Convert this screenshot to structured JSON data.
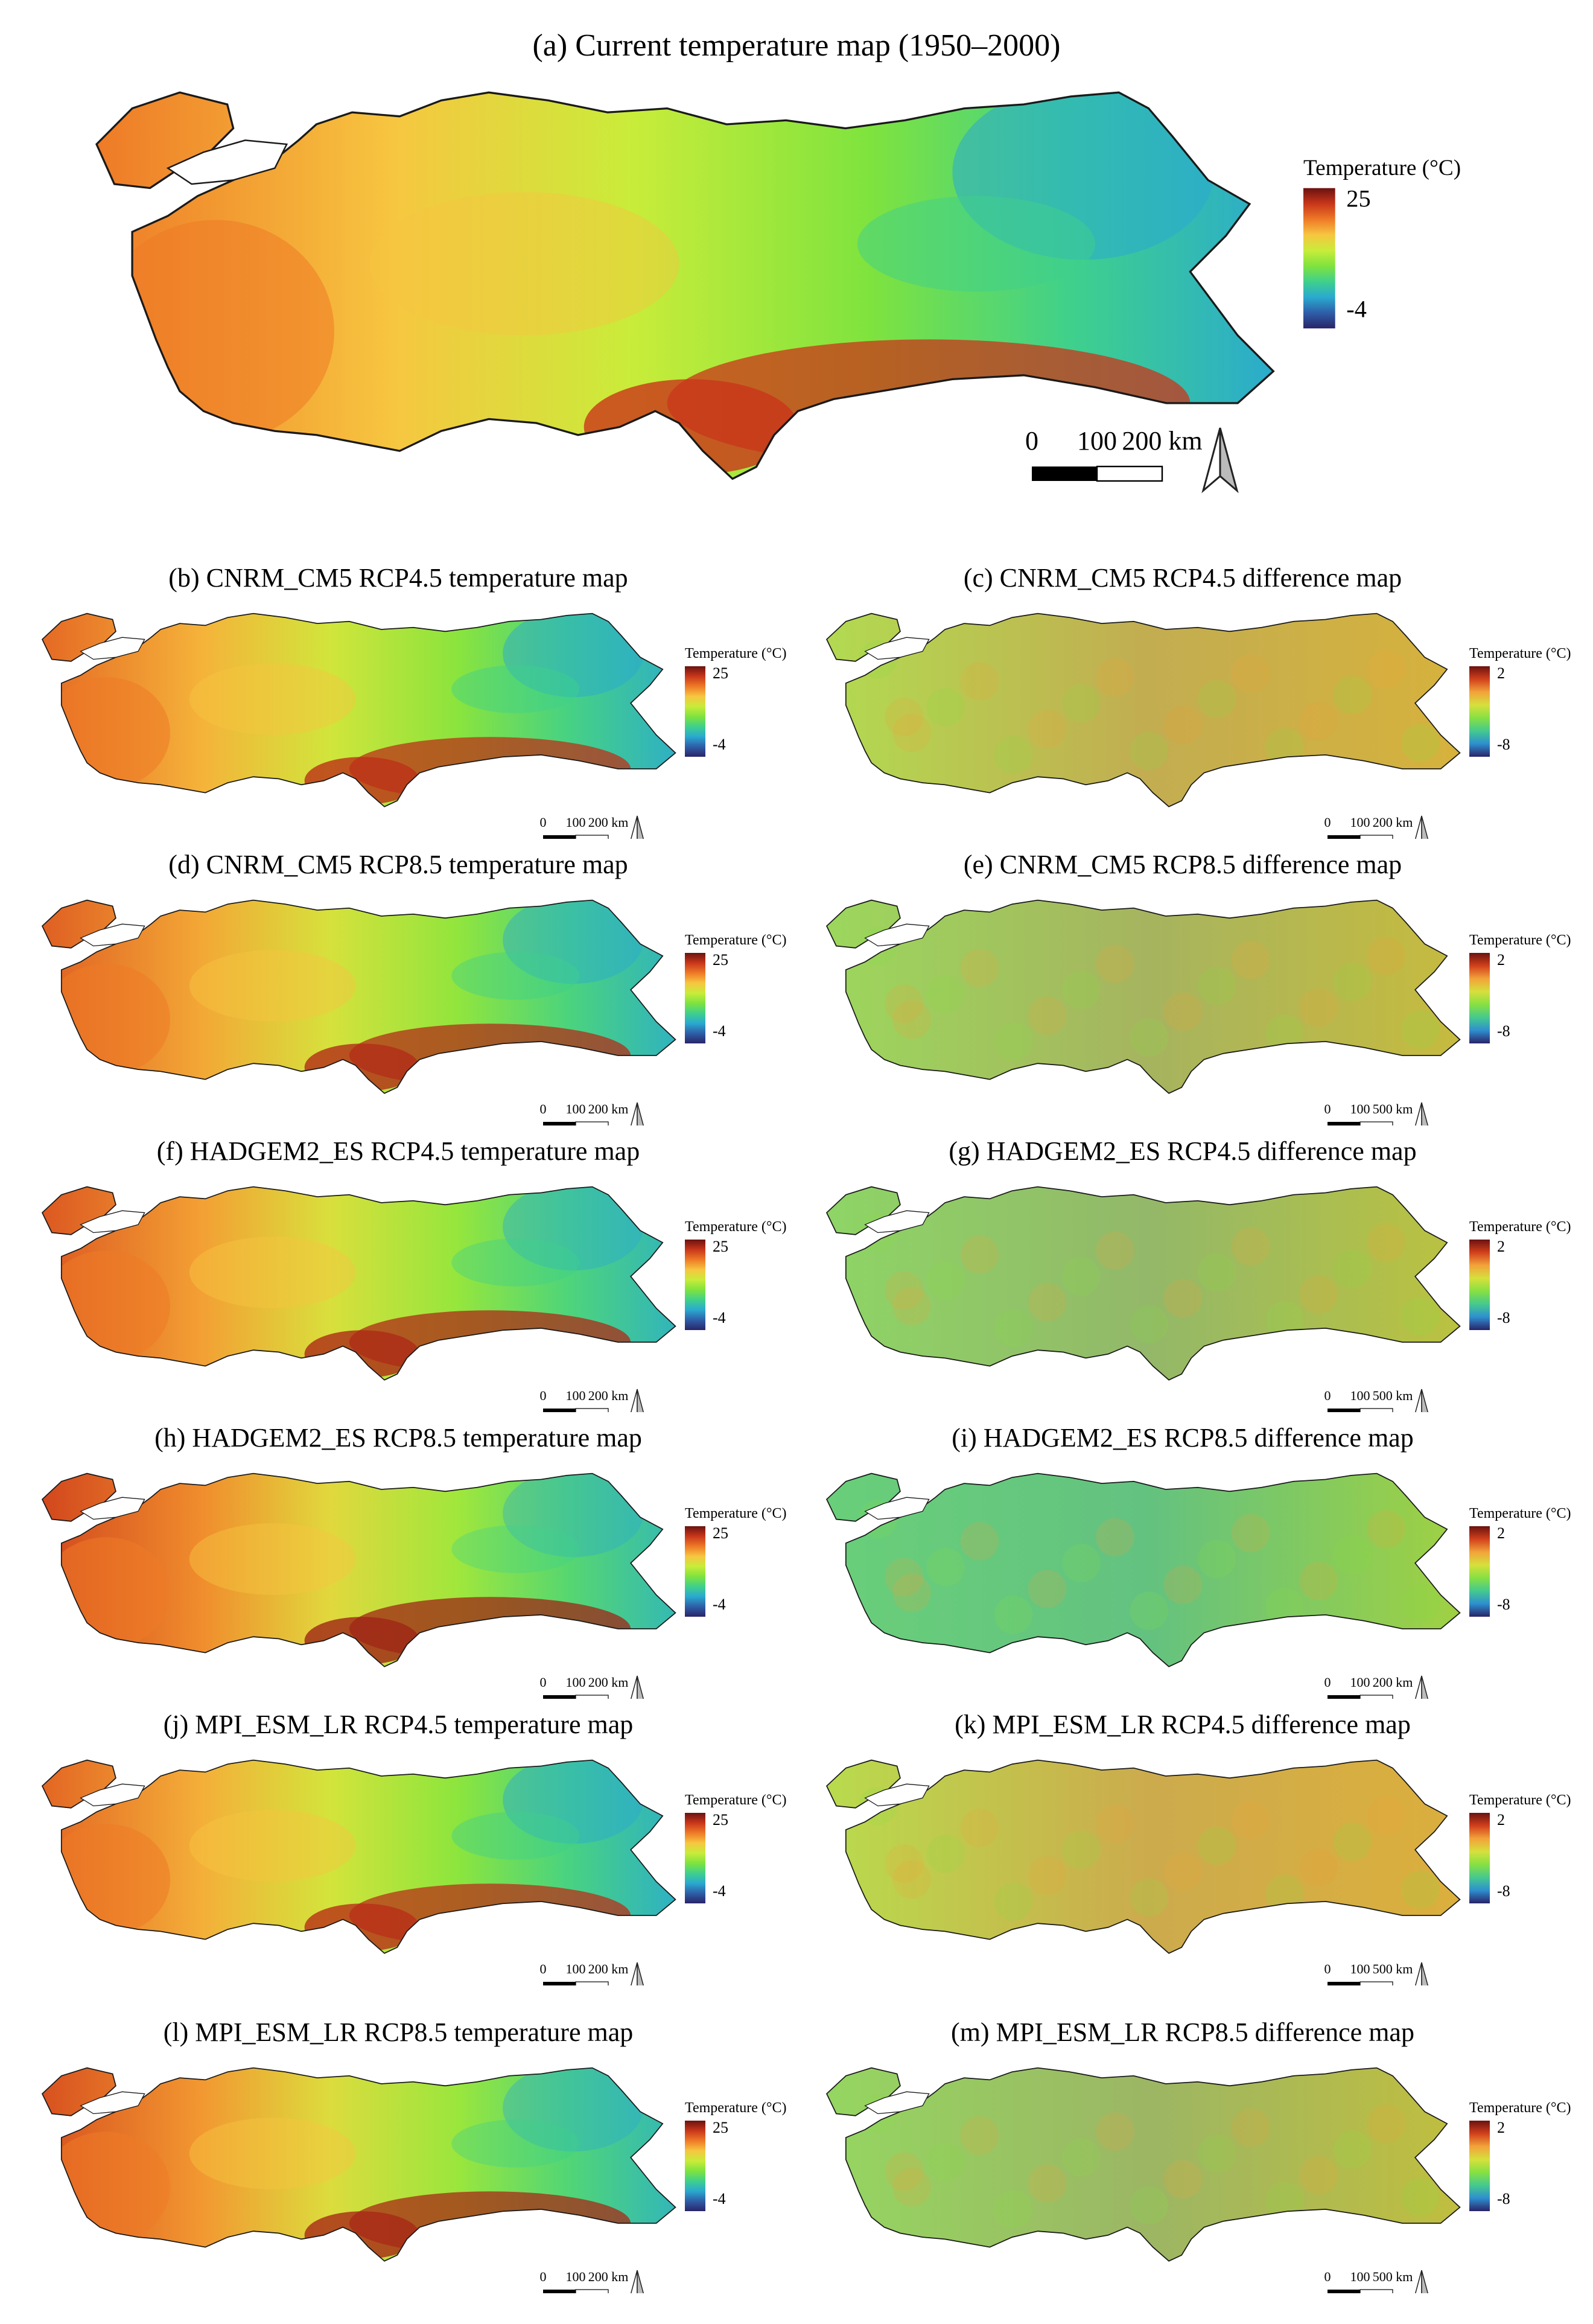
{
  "panel_a": {
    "title": "(a) Current temperature map (1950–2000)",
    "legend": {
      "title": "Temperature (°C)",
      "max": "25",
      "min": "-4"
    },
    "scale": {
      "labels": [
        "0",
        "100",
        "200 km"
      ]
    },
    "map": {
      "region": "Turkey",
      "color_mode": "temp",
      "intensity": 0
    }
  },
  "panels": [
    {
      "id": "b",
      "title": "(b) CNRM_CM5 RCP4.5 temperature map",
      "legend": {
        "title": "Temperature (°C)",
        "max": "25",
        "min": "-4"
      },
      "scale": {
        "labels": [
          "0",
          "100",
          "200 km"
        ]
      },
      "map": {
        "color_mode": "temp",
        "intensity": 0.25
      }
    },
    {
      "id": "c",
      "title": "(c) CNRM_CM5 RCP4.5 difference map",
      "legend": {
        "title": "Temperature (°C)",
        "max": "2",
        "min": "-8"
      },
      "scale": {
        "labels": [
          "0",
          "100",
          "200 km"
        ]
      },
      "map": {
        "color_mode": "diff",
        "intensity": 0.25
      }
    },
    {
      "id": "d",
      "title": "(d) CNRM_CM5 RCP8.5 temperature map",
      "legend": {
        "title": "Temperature (°C)",
        "max": "25",
        "min": "-4"
      },
      "scale": {
        "labels": [
          "0",
          "100",
          "200 km"
        ]
      },
      "map": {
        "color_mode": "temp",
        "intensity": 0.4
      }
    },
    {
      "id": "e",
      "title": "(e) CNRM_CM5 RCP8.5 difference map",
      "legend": {
        "title": "Temperature (°C)",
        "max": "2",
        "min": "-8"
      },
      "scale": {
        "labels": [
          "0",
          "100",
          "500 km"
        ]
      },
      "map": {
        "color_mode": "diff",
        "intensity": 0.4
      }
    },
    {
      "id": "f",
      "title": "(f) HADGEM2_ES RCP4.5 temperature map",
      "legend": {
        "title": "Temperature (°C)",
        "max": "25",
        "min": "-4"
      },
      "scale": {
        "labels": [
          "0",
          "100",
          "200 km"
        ]
      },
      "map": {
        "color_mode": "temp",
        "intensity": 0.5
      }
    },
    {
      "id": "g",
      "title": "(g) HADGEM2_ES RCP4.5 difference map",
      "legend": {
        "title": "Temperature (°C)",
        "max": "2",
        "min": "-8"
      },
      "scale": {
        "labels": [
          "0",
          "100",
          "500 km"
        ]
      },
      "map": {
        "color_mode": "diff",
        "intensity": 0.5
      }
    },
    {
      "id": "h",
      "title": "(h) HADGEM2_ES RCP8.5 temperature map",
      "legend": {
        "title": "Temperature (°C)",
        "max": "25",
        "min": "-4"
      },
      "scale": {
        "labels": [
          "0",
          "100",
          "200 km"
        ]
      },
      "map": {
        "color_mode": "temp",
        "intensity": 0.75
      }
    },
    {
      "id": "i",
      "title": "(i) HADGEM2_ES RCP8.5 difference map",
      "legend": {
        "title": "Temperature (°C)",
        "max": "2",
        "min": "-8"
      },
      "scale": {
        "labels": [
          "0",
          "100",
          "200 km"
        ]
      },
      "map": {
        "color_mode": "diff",
        "intensity": 0.75
      }
    },
    {
      "id": "j",
      "title": "(j) MPI_ESM_LR RCP4.5 temperature map",
      "legend": {
        "title": "Temperature (°C)",
        "max": "25",
        "min": "-4"
      },
      "scale": {
        "labels": [
          "0",
          "100",
          "200 km"
        ]
      },
      "map": {
        "color_mode": "temp",
        "intensity": 0.3
      }
    },
    {
      "id": "k",
      "title": "(k) MPI_ESM_LR RCP4.5 difference map",
      "legend": {
        "title": "Temperature (°C)",
        "max": "2",
        "min": "-8"
      },
      "scale": {
        "labels": [
          "0",
          "100",
          "500 km"
        ]
      },
      "map": {
        "color_mode": "diff",
        "intensity": 0.2
      }
    },
    {
      "id": "l",
      "title": "(l) MPI_ESM_LR RCP8.5 temperature map",
      "legend": {
        "title": "Temperature (°C)",
        "max": "25",
        "min": "-4"
      },
      "scale": {
        "labels": [
          "0",
          "100",
          "200 km"
        ]
      },
      "map": {
        "color_mode": "temp",
        "intensity": 0.6
      }
    },
    {
      "id": "m",
      "title": "(m) MPI_ESM_LR RCP8.5 difference map",
      "legend": {
        "title": "Temperature (°C)",
        "max": "2",
        "min": "-8"
      },
      "scale": {
        "labels": [
          "0",
          "100",
          "500 km"
        ]
      },
      "map": {
        "color_mode": "diff",
        "intensity": 0.45
      }
    }
  ],
  "colors": {
    "temp_ramp": [
      "#6b1210",
      "#c9361a",
      "#ee7a27",
      "#f7c640",
      "#c9ec3a",
      "#7fe33e",
      "#3fd08c",
      "#2aa9d0",
      "#2e5ea8",
      "#2a2468"
    ],
    "diff_ramp": [
      "#6b1210",
      "#d2401c",
      "#f2a33a",
      "#d6e03c",
      "#86e043",
      "#45c98f",
      "#2e8fd0",
      "#2a2468"
    ],
    "coast_outline": "#1a1a1a"
  }
}
